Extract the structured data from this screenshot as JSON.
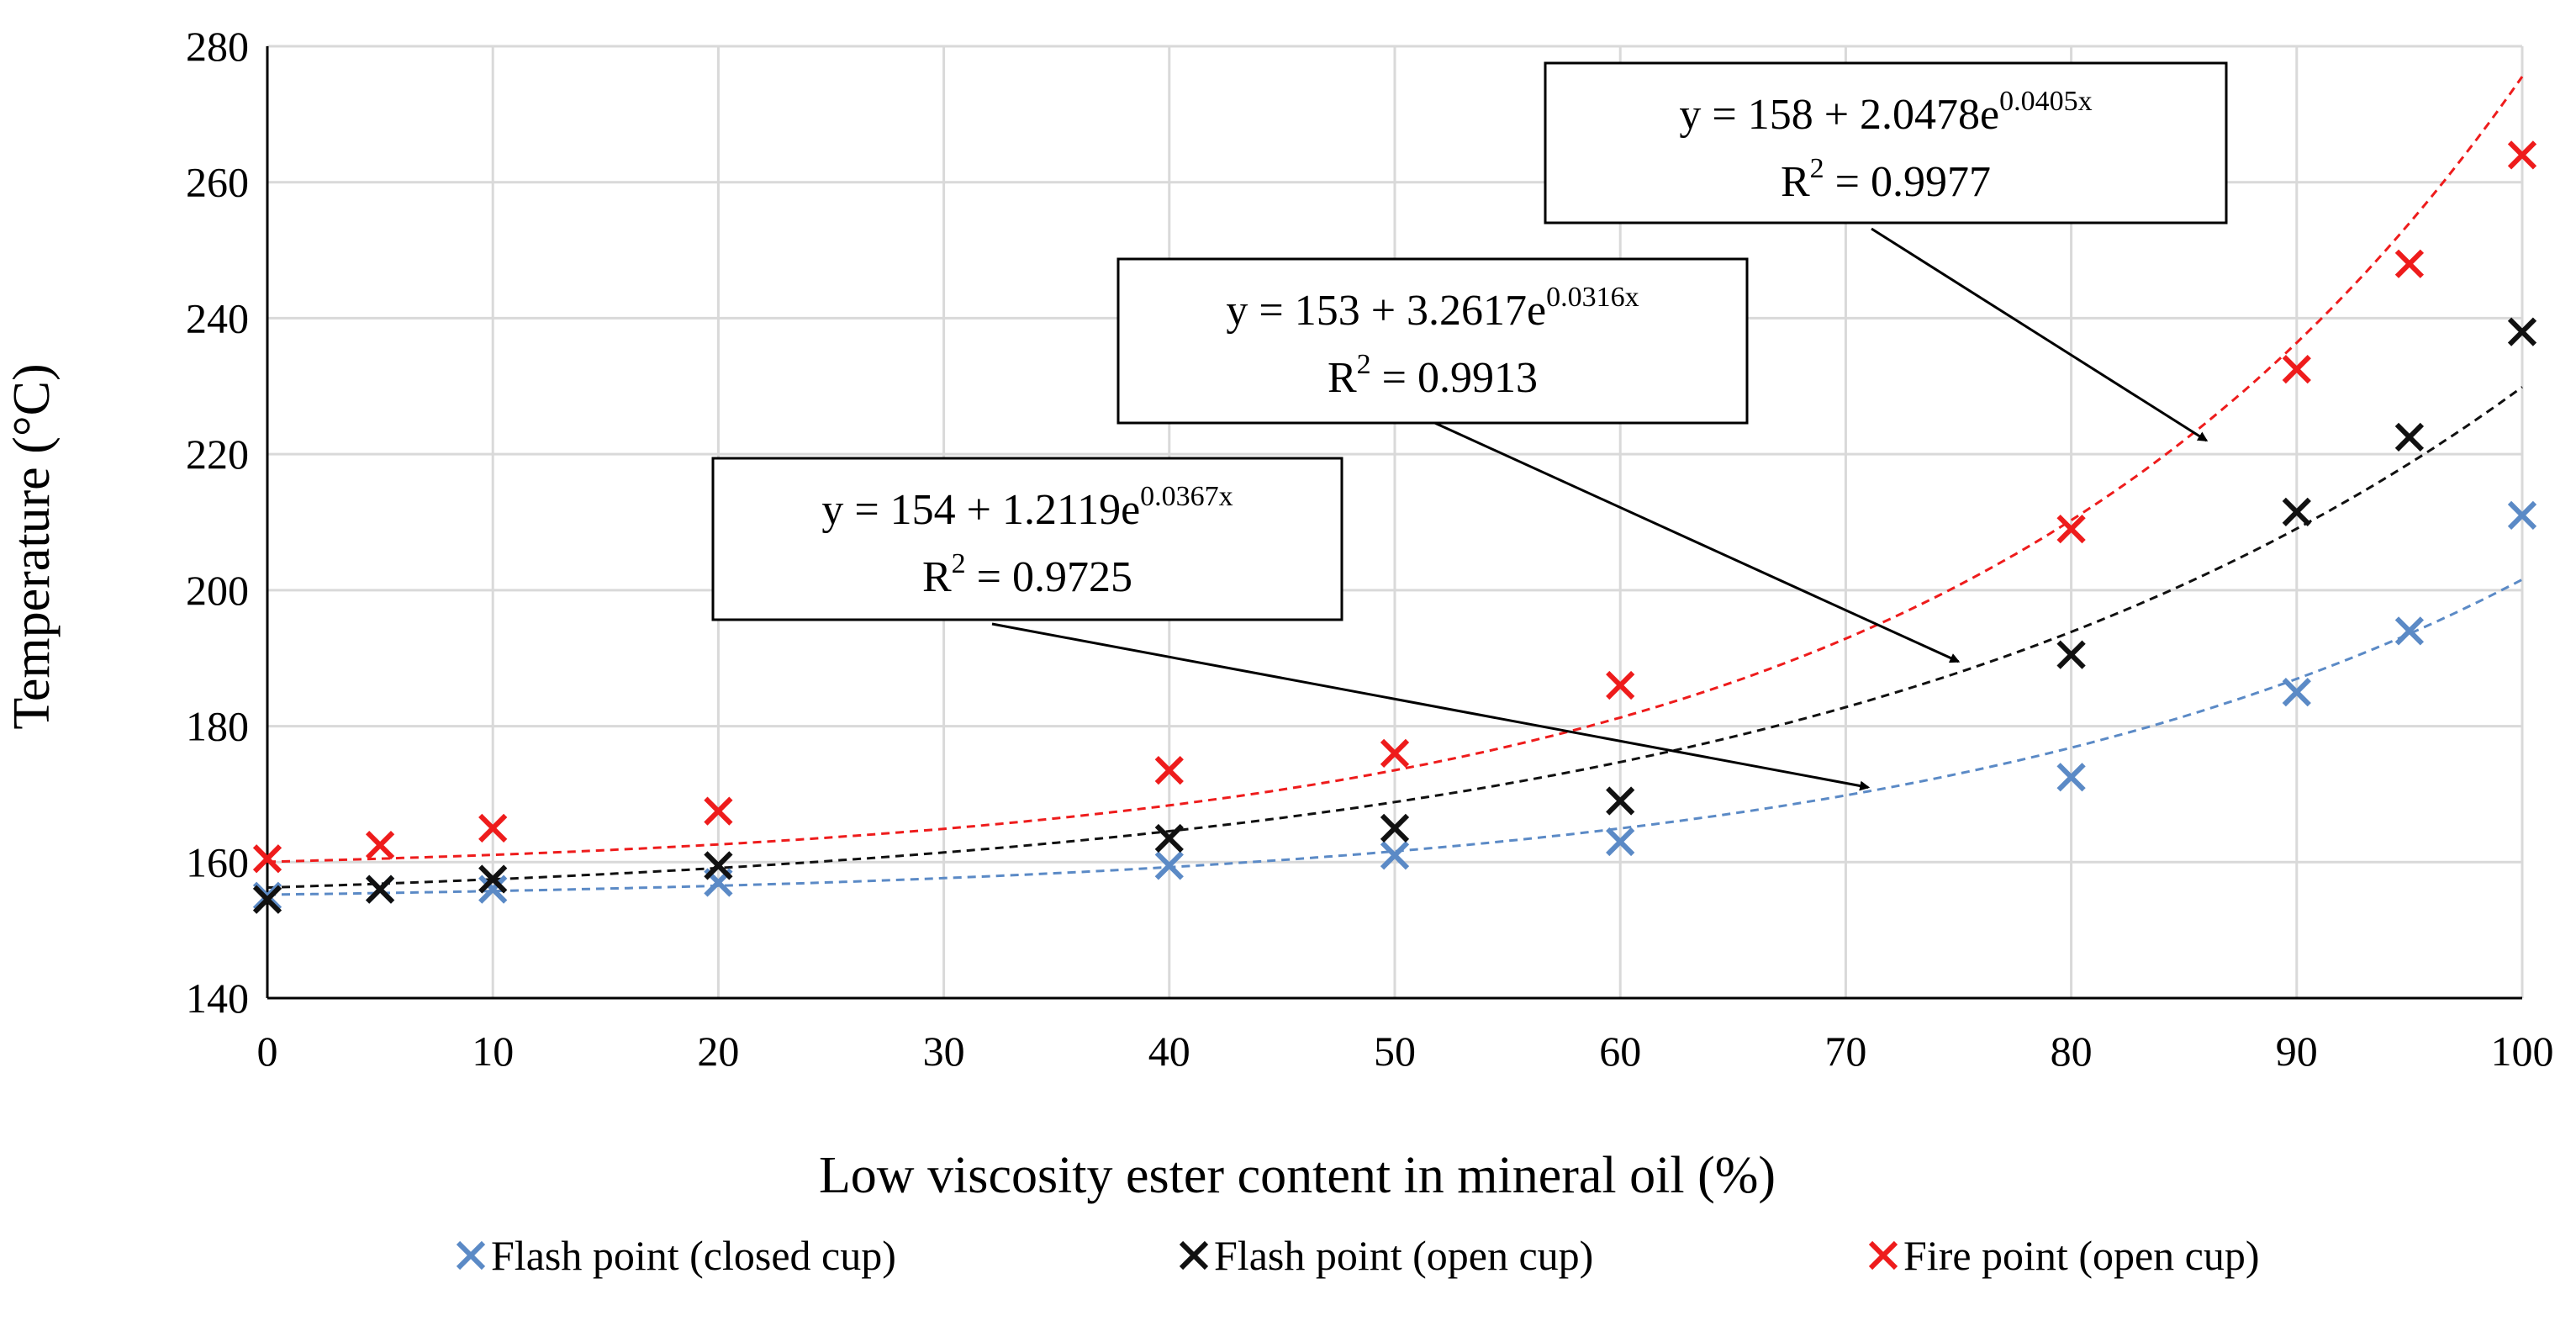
{
  "chart_data": {
    "type": "scatter",
    "title": "",
    "xlabel": "Low viscosity ester content in mineral oil (%)",
    "ylabel": "Temperature (°C)",
    "xlim": [
      0,
      100
    ],
    "ylim": [
      140,
      280
    ],
    "xticks": [
      0,
      10,
      20,
      30,
      40,
      50,
      60,
      70,
      80,
      90,
      100
    ],
    "yticks": [
      140,
      160,
      180,
      200,
      220,
      240,
      260,
      280
    ],
    "grid": true,
    "legend_position": "bottom",
    "series": [
      {
        "name": "Flash point (closed cup)",
        "color": "#5b8ac6",
        "marker": "x",
        "x": [
          0,
          5,
          10,
          20,
          40,
          50,
          60,
          80,
          90,
          95,
          100
        ],
        "y": [
          155,
          156,
          156,
          157,
          159.5,
          161,
          163,
          172.5,
          185,
          194,
          211
        ],
        "trend": {
          "a": 154,
          "b": 1.2119,
          "k": 0.0367
        }
      },
      {
        "name": "Flash point (open cup)",
        "color": "#111111",
        "marker": "x",
        "x": [
          0,
          5,
          10,
          20,
          40,
          50,
          60,
          80,
          90,
          95,
          100
        ],
        "y": [
          154.5,
          156,
          157.5,
          159.5,
          163.5,
          165,
          169,
          190.5,
          211.5,
          222.5,
          238
        ],
        "trend": {
          "a": 153,
          "b": 3.2617,
          "k": 0.0316
        }
      },
      {
        "name": "Fire point (open cup)",
        "color": "#ee1c1c",
        "marker": "x",
        "x": [
          0,
          5,
          10,
          20,
          40,
          50,
          60,
          80,
          90,
          95,
          100
        ],
        "y": [
          160.5,
          162.5,
          165,
          167.5,
          173.5,
          176,
          186,
          209,
          232.5,
          248,
          264
        ],
        "trend": {
          "a": 158,
          "b": 2.0478,
          "k": 0.0405
        }
      }
    ],
    "annotations": [
      {
        "series": 2,
        "eq_prefix": "y = 158 + 2.0478e",
        "eq_exp": "0.0405x",
        "r2_prefix": "R",
        "r2_sup": "2",
        "r2_value": " = 0.9977",
        "arrow_target": [
          86,
          222
        ]
      },
      {
        "series": 1,
        "eq_prefix": "y = 153 + 3.2617e",
        "eq_exp": "0.0316x",
        "r2_prefix": "R",
        "r2_sup": "2",
        "r2_value": " = 0.9913",
        "arrow_target": [
          75,
          189.5
        ]
      },
      {
        "series": 0,
        "eq_prefix": "y = 154 + 1.2119e",
        "eq_exp": "0.0367x",
        "r2_prefix": "R",
        "r2_sup": "2",
        "r2_value": " = 0.9725",
        "arrow_target": [
          71,
          171
        ]
      }
    ]
  }
}
